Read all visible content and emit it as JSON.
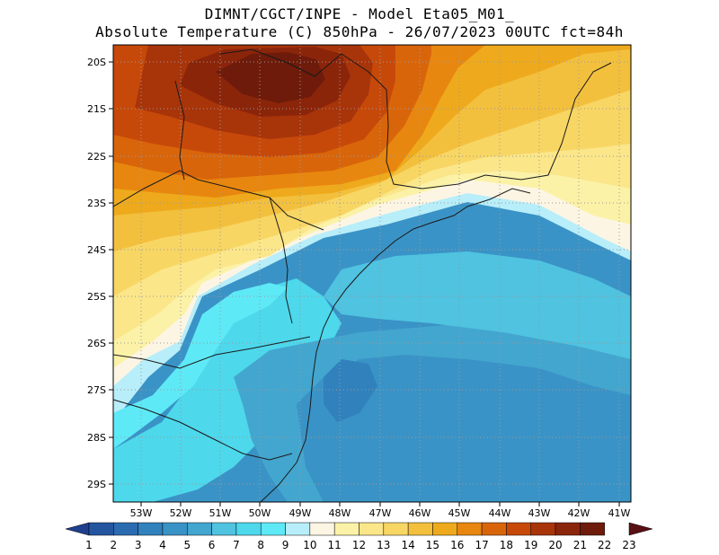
{
  "title": {
    "line1": "DIMNT/CGCT/INPE -  Model Eta05_M01_",
    "line2": "Absolute Temperature (C) 850hPa -  26/07/2023 00UTC fct=84h"
  },
  "map": {
    "lat_labels": [
      "20S",
      "21S",
      "22S",
      "23S",
      "24S",
      "25S",
      "26S",
      "27S",
      "28S",
      "29S"
    ],
    "lon_labels": [
      "53W",
      "52W",
      "51W",
      "50W",
      "49W",
      "48W",
      "47W",
      "46W",
      "45W",
      "44W",
      "43W",
      "42W",
      "41W"
    ]
  },
  "colorbar": {
    "labels": [
      "1",
      "2",
      "3",
      "4",
      "5",
      "6",
      "7",
      "8",
      "9",
      "10",
      "11",
      "12",
      "13",
      "14",
      "15",
      "16",
      "17",
      "18",
      "19",
      "20",
      "21",
      "22",
      "23"
    ],
    "colors": [
      "#1f3f8f",
      "#2456a0",
      "#2b6cb0",
      "#3181bd",
      "#3a93c6",
      "#43a6cf",
      "#4fc3e0",
      "#4dd8ec",
      "#5ee9f7",
      "#b8eef9",
      "#fdf5e4",
      "#fbf2a8",
      "#fbe68a",
      "#f8d664",
      "#f3c03e",
      "#eeaa1c",
      "#e8870f",
      "#d9650b",
      "#c7490a",
      "#a8340a",
      "#8b250a",
      "#6e1b0b",
      "#5a0f12"
    ]
  }
}
